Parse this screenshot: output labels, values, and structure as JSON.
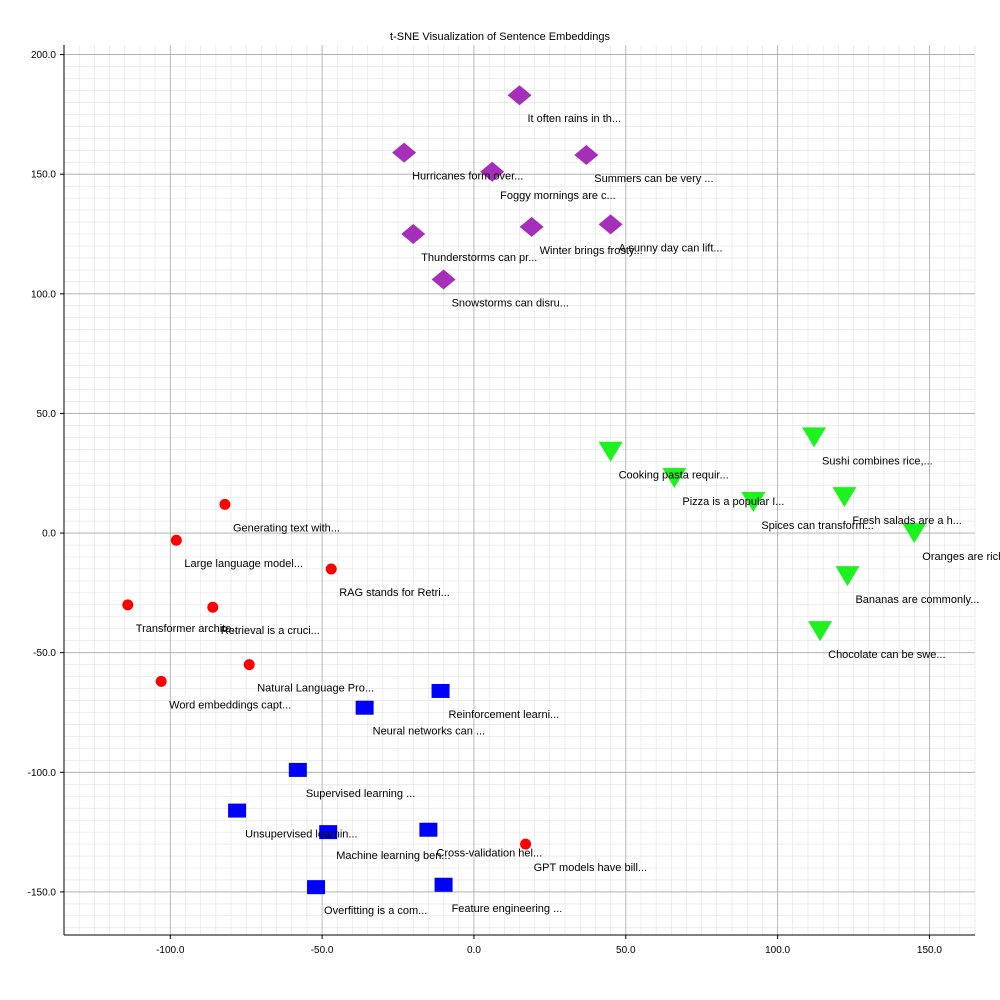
{
  "chart_data": {
    "type": "scatter",
    "title": "t-SNE Visualization of Sentence Embeddings",
    "xlabel": "",
    "ylabel": "",
    "xlim": [
      -135,
      165
    ],
    "ylim": [
      -168,
      204
    ],
    "xticks": [
      -100,
      -50,
      0,
      50,
      100,
      150
    ],
    "xtick_labels": [
      "-100.0",
      "-50.0",
      "0.0",
      "50.0",
      "100.0",
      "150.0"
    ],
    "yticks": [
      -150,
      -100,
      -50,
      0,
      50,
      100,
      150,
      200
    ],
    "ytick_labels": [
      "-150.0",
      "-100.0",
      "-50.0",
      "0.0",
      "50.0",
      "100.0",
      "150.0",
      "200.0"
    ],
    "grid": true,
    "legend": "none",
    "series": [
      {
        "marker": "diamond",
        "color": "#a52fba",
        "points": [
          {
            "x": 15,
            "y": 183,
            "label": "It often rains in th..."
          },
          {
            "x": -23,
            "y": 159,
            "label": "Hurricanes form over..."
          },
          {
            "x": 6,
            "y": 151,
            "label": "Foggy mornings are c..."
          },
          {
            "x": 37,
            "y": 158,
            "label": "Summers can be very ..."
          },
          {
            "x": -20,
            "y": 125,
            "label": "Thunderstorms can pr..."
          },
          {
            "x": 19,
            "y": 128,
            "label": "Winter brings frosty..."
          },
          {
            "x": 45,
            "y": 129,
            "label": "A sunny day can lift..."
          },
          {
            "x": -10,
            "y": 106,
            "label": "Snowstorms can disru..."
          }
        ]
      },
      {
        "marker": "triangle-down",
        "color": "#1ef21e",
        "points": [
          {
            "x": 45,
            "y": 34,
            "label": "Cooking pasta requir..."
          },
          {
            "x": 66,
            "y": 23,
            "label": "Pizza is a popular I..."
          },
          {
            "x": 92,
            "y": 13,
            "label": "Spices can transform..."
          },
          {
            "x": 112,
            "y": 40,
            "label": "Sushi combines rice,..."
          },
          {
            "x": 122,
            "y": 15,
            "label": "Fresh salads are a h..."
          },
          {
            "x": 145,
            "y": 0,
            "label": "Oranges are rich in ..."
          },
          {
            "x": 123,
            "y": -18,
            "label": "Bananas are commonly..."
          },
          {
            "x": 114,
            "y": -41,
            "label": "Chocolate can be swe..."
          }
        ]
      },
      {
        "marker": "circle",
        "color": "#ff0000",
        "points": [
          {
            "x": -82,
            "y": 12,
            "label": "Generating text with..."
          },
          {
            "x": -98,
            "y": -3,
            "label": "Large language model..."
          },
          {
            "x": -47,
            "y": -15,
            "label": "RAG stands for Retri..."
          },
          {
            "x": -114,
            "y": -30,
            "label": "Transformer archite..."
          },
          {
            "x": -86,
            "y": -31,
            "label": "Retrieval is a cruci..."
          },
          {
            "x": -74,
            "y": -55,
            "label": "Natural Language Pro..."
          },
          {
            "x": -103,
            "y": -62,
            "label": "Word embeddings capt..."
          },
          {
            "x": 17,
            "y": -130,
            "label": "GPT models have bill..."
          }
        ]
      },
      {
        "marker": "square",
        "color": "#0000ff",
        "points": [
          {
            "x": -11,
            "y": -66,
            "label": "Reinforcement learni..."
          },
          {
            "x": -36,
            "y": -73,
            "label": "Neural networks can ..."
          },
          {
            "x": -58,
            "y": -99,
            "label": "Supervised learning ..."
          },
          {
            "x": -78,
            "y": -116,
            "label": "Unsupervised learnin..."
          },
          {
            "x": -48,
            "y": -125,
            "label": "Machine learning ben..."
          },
          {
            "x": -15,
            "y": -124,
            "label": "Cross-validation hel..."
          },
          {
            "x": -52,
            "y": -148,
            "label": "Overfitting is a com..."
          },
          {
            "x": -10,
            "y": -147,
            "label": "Feature engineering ..."
          }
        ]
      }
    ]
  }
}
